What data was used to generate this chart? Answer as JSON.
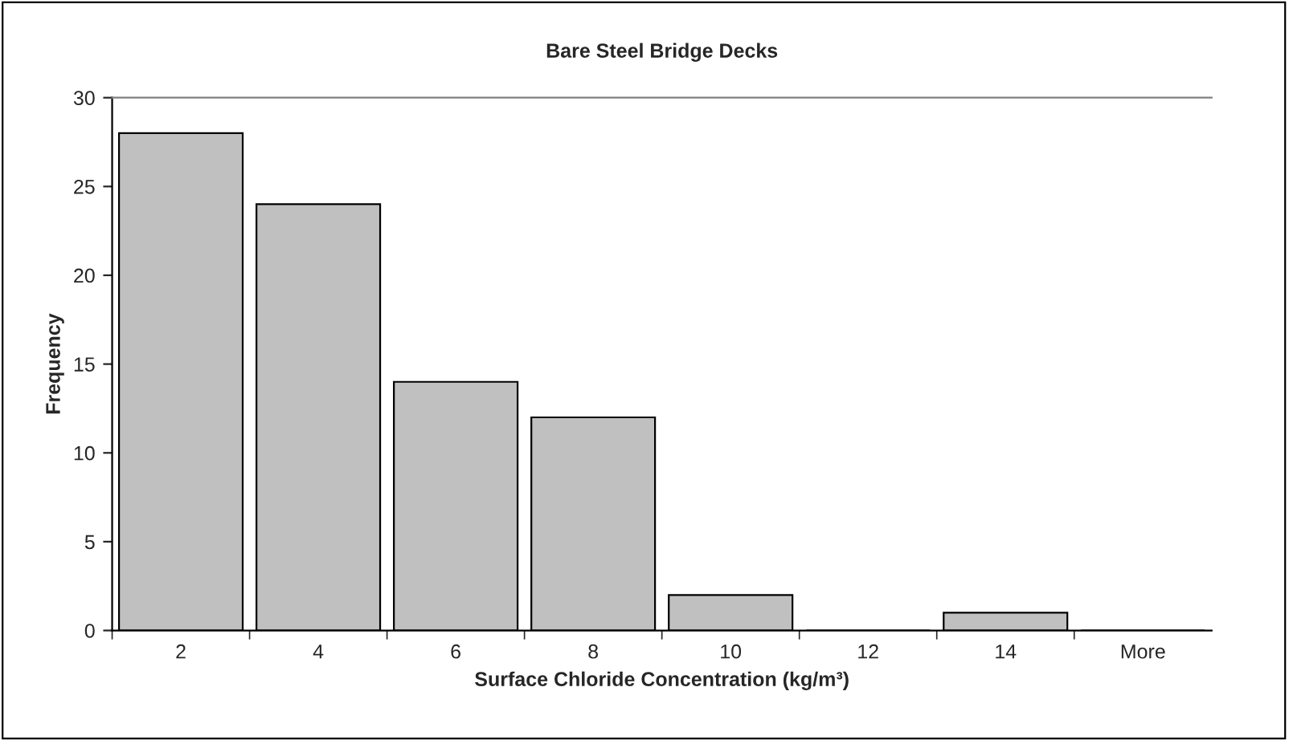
{
  "chart_data": {
    "type": "bar",
    "title": "Bare Steel Bridge Decks",
    "xlabel": "Surface Chloride Concentration (kg/m³)",
    "ylabel": "Frequency",
    "categories": [
      "2",
      "4",
      "6",
      "8",
      "10",
      "12",
      "14",
      "More"
    ],
    "values": [
      28,
      24,
      14,
      12,
      2,
      0,
      1,
      0
    ],
    "color": "#c0c0c0",
    "ylim": [
      0,
      30
    ],
    "yticks": [
      0,
      5,
      10,
      15,
      20,
      25,
      30
    ],
    "grid": false,
    "legend": false
  }
}
